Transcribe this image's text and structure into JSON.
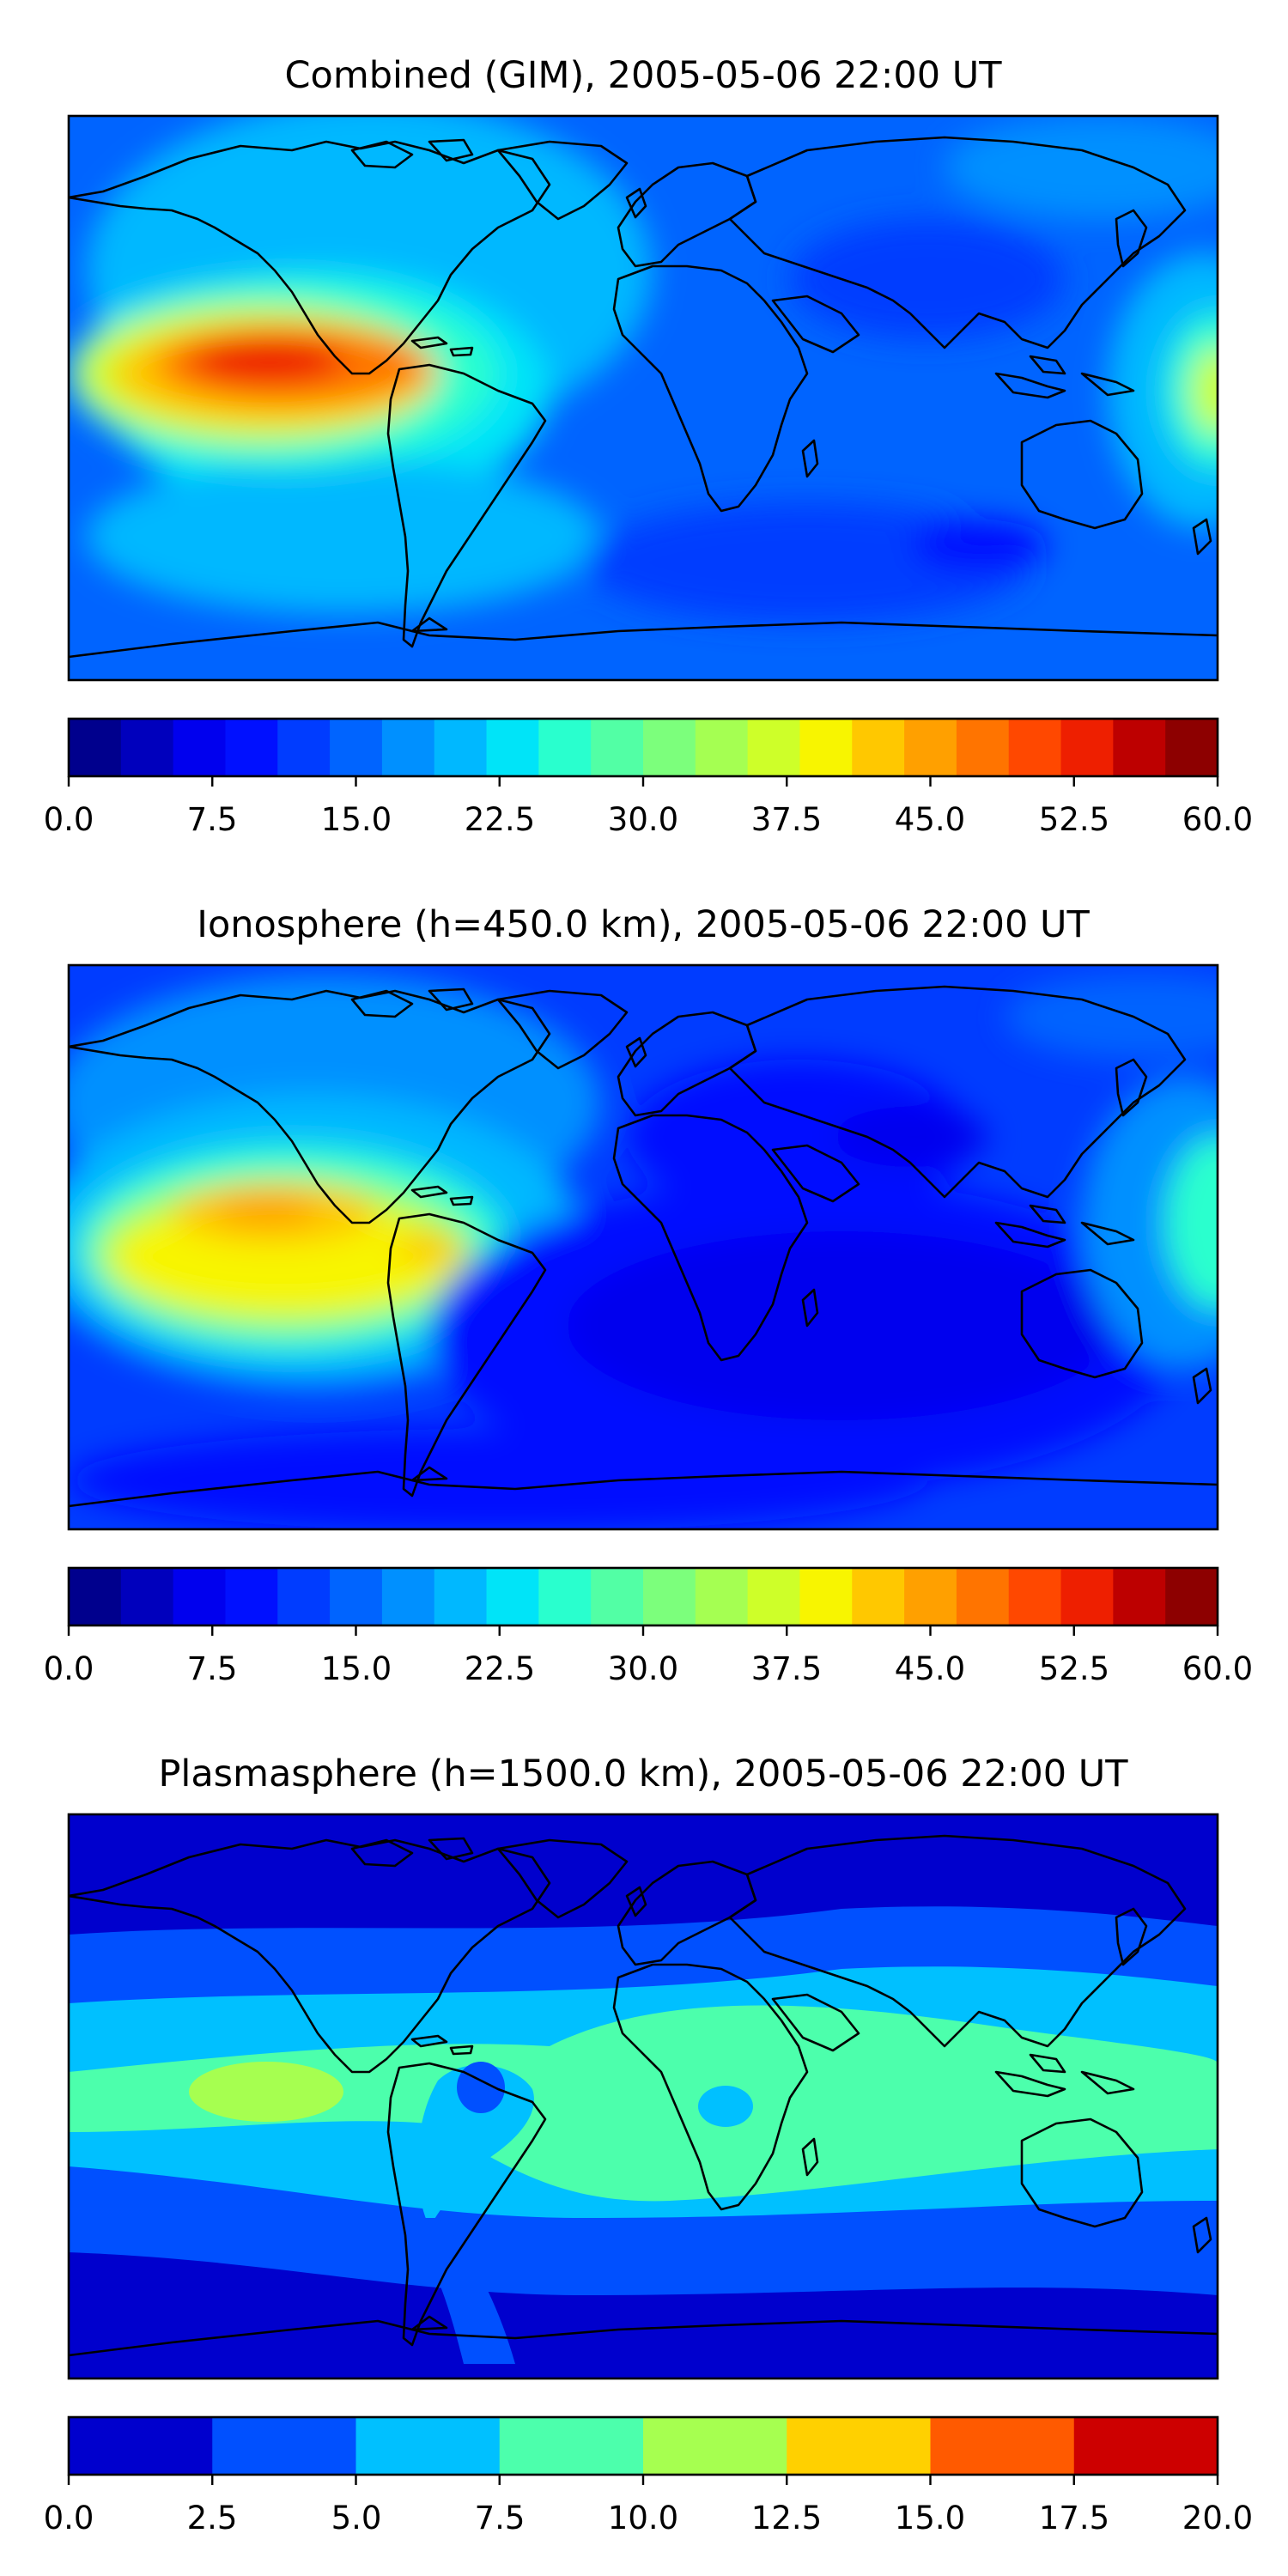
{
  "panels": [
    {
      "title": "Combined (GIM), 2005-05-06 22:00 UT",
      "colorbar": {
        "colors": [
          "#00008d",
          "#0000bd",
          "#0000ee",
          "#0010ff",
          "#003cff",
          "#0064ff",
          "#0090ff",
          "#00b8ff",
          "#00e4f8",
          "#29ffce",
          "#52ffa5",
          "#7cff7c",
          "#a5ff52",
          "#ceff29",
          "#f8f500",
          "#ffc800",
          "#ffa000",
          "#ff7400",
          "#ff4800",
          "#ee1f00",
          "#bd0000",
          "#8d0000"
        ],
        "tick_labels": [
          "0.0",
          "7.5",
          "15.0",
          "22.5",
          "30.0",
          "37.5",
          "45.0",
          "52.5",
          "60.0"
        ]
      }
    },
    {
      "title": "Ionosphere  (h=450.0 km), 2005-05-06 22:00 UT",
      "colorbar": {
        "colors": [
          "#00008d",
          "#0000bd",
          "#0000ee",
          "#0010ff",
          "#003cff",
          "#0064ff",
          "#0090ff",
          "#00b8ff",
          "#00e4f8",
          "#29ffce",
          "#52ffa5",
          "#7cff7c",
          "#a5ff52",
          "#ceff29",
          "#f8f500",
          "#ffc800",
          "#ffa000",
          "#ff7400",
          "#ff4800",
          "#ee1f00",
          "#bd0000",
          "#8d0000"
        ],
        "tick_labels": [
          "0.0",
          "7.5",
          "15.0",
          "22.5",
          "30.0",
          "37.5",
          "45.0",
          "52.5",
          "60.0"
        ]
      }
    },
    {
      "title": "Plasmasphere (h=1500.0 km), 2005-05-06 22:00 UT",
      "colorbar": {
        "colors": [
          "#0000cd",
          "#0050ff",
          "#00c0ff",
          "#4cffac",
          "#a6ff50",
          "#ffd000",
          "#ff5a00",
          "#cd0000"
        ],
        "tick_labels": [
          "0.0",
          "2.5",
          "5.0",
          "7.5",
          "10.0",
          "12.5",
          "15.0",
          "17.5",
          "20.0"
        ]
      }
    }
  ]
}
